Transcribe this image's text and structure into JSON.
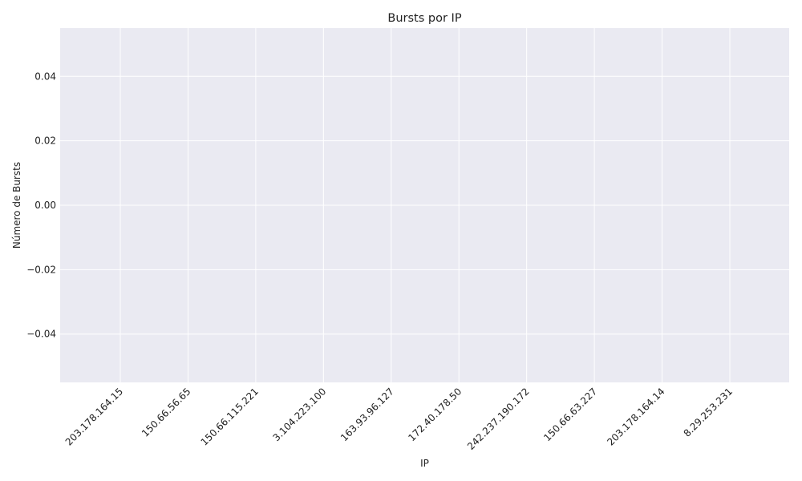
{
  "chart_data": {
    "type": "bar",
    "title": "Bursts por IP",
    "xlabel": "IP",
    "ylabel": "Número de Bursts",
    "categories": [
      "203.178.164.15",
      "150.66.56.65",
      "150.66.115.221",
      "3.104.223.100",
      "163.93.96.127",
      "172.40.178.50",
      "242.237.190.172",
      "150.66.63.227",
      "203.178.164.14",
      "8.29.253.231"
    ],
    "values": [
      0,
      0,
      0,
      0,
      0,
      0,
      0,
      0,
      0,
      0
    ],
    "yticks": [
      -0.04,
      -0.02,
      0.0,
      0.02,
      0.04
    ],
    "ytick_labels": [
      "−0.04",
      "−0.02",
      "0.00",
      "0.02",
      "0.04"
    ],
    "ylim": [
      -0.055,
      0.055
    ],
    "grid": true,
    "background_color": "#eaeaf2",
    "grid_color": "#ffffff"
  }
}
